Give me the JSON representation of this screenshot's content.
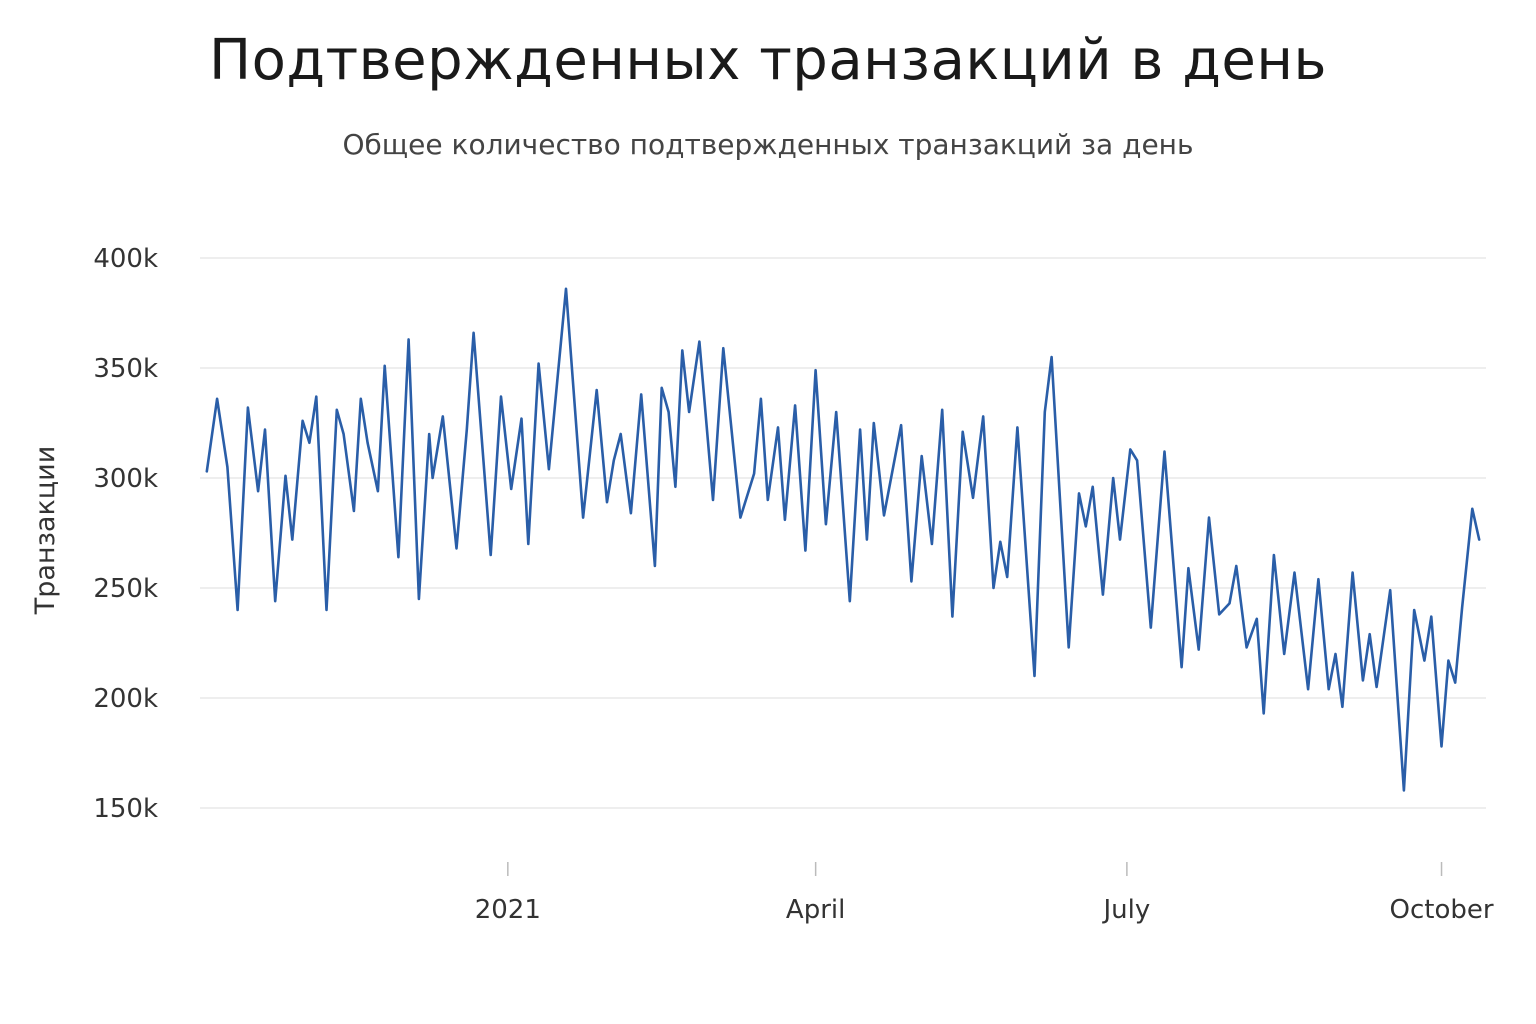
{
  "title": "Подтвержденных транзакций в день",
  "subtitle": "Общее количество подтвержденных транзакций за день",
  "chart_data": {
    "type": "line",
    "ylabel": "Транзакции",
    "xlabel": "",
    "ylim": [
      150000,
      400000
    ],
    "yticks": [
      150000,
      200000,
      250000,
      300000,
      350000,
      400000
    ],
    "ytick_labels": [
      "150k",
      "200k",
      "250k",
      "300k",
      "350k",
      "400k"
    ],
    "xticks": [
      {
        "date": "2021-01-01",
        "label": "2021"
      },
      {
        "date": "2021-04-01",
        "label": "April"
      },
      {
        "date": "2021-07-01",
        "label": "July"
      },
      {
        "date": "2021-10-01",
        "label": "October"
      }
    ],
    "xlim": [
      "2020-10-03",
      "2021-10-14"
    ],
    "grid": "horizontal",
    "line_color": "#2a5ea8",
    "series": [
      {
        "x_start": "2020-10-05",
        "points": [
          [
            "2020-10-05",
            303000
          ],
          [
            "2020-10-08",
            336000
          ],
          [
            "2020-10-11",
            305000
          ],
          [
            "2020-10-14",
            240000
          ],
          [
            "2020-10-17",
            332000
          ],
          [
            "2020-10-20",
            294000
          ],
          [
            "2020-10-22",
            322000
          ],
          [
            "2020-10-25",
            244000
          ],
          [
            "2020-10-28",
            301000
          ],
          [
            "2020-10-30",
            272000
          ],
          [
            "2020-11-02",
            326000
          ],
          [
            "2020-11-04",
            316000
          ],
          [
            "2020-11-06",
            337000
          ],
          [
            "2020-11-09",
            240000
          ],
          [
            "2020-11-12",
            331000
          ],
          [
            "2020-11-14",
            320000
          ],
          [
            "2020-11-17",
            285000
          ],
          [
            "2020-11-19",
            336000
          ],
          [
            "2020-11-21",
            316000
          ],
          [
            "2020-11-24",
            294000
          ],
          [
            "2020-11-26",
            351000
          ],
          [
            "2020-11-30",
            264000
          ],
          [
            "2020-12-03",
            363000
          ],
          [
            "2020-12-06",
            245000
          ],
          [
            "2020-12-09",
            320000
          ],
          [
            "2020-12-10",
            300000
          ],
          [
            "2020-12-13",
            328000
          ],
          [
            "2020-12-17",
            268000
          ],
          [
            "2020-12-20",
            322000
          ],
          [
            "2020-12-22",
            366000
          ],
          [
            "2020-12-27",
            265000
          ],
          [
            "2020-12-30",
            337000
          ],
          [
            "2021-01-02",
            295000
          ],
          [
            "2021-01-05",
            327000
          ],
          [
            "2021-01-07",
            270000
          ],
          [
            "2021-01-10",
            352000
          ],
          [
            "2021-01-13",
            304000
          ],
          [
            "2021-01-18",
            386000
          ],
          [
            "2021-01-23",
            282000
          ],
          [
            "2021-01-27",
            340000
          ],
          [
            "2021-01-30",
            289000
          ],
          [
            "2021-02-01",
            308000
          ],
          [
            "2021-02-03",
            320000
          ],
          [
            "2021-02-06",
            284000
          ],
          [
            "2021-02-09",
            338000
          ],
          [
            "2021-02-13",
            260000
          ],
          [
            "2021-02-15",
            341000
          ],
          [
            "2021-02-17",
            330000
          ],
          [
            "2021-02-19",
            296000
          ],
          [
            "2021-02-21",
            358000
          ],
          [
            "2021-02-23",
            330000
          ],
          [
            "2021-02-26",
            362000
          ],
          [
            "2021-03-02",
            290000
          ],
          [
            "2021-03-05",
            359000
          ],
          [
            "2021-03-10",
            282000
          ],
          [
            "2021-03-14",
            302000
          ],
          [
            "2021-03-16",
            336000
          ],
          [
            "2021-03-18",
            290000
          ],
          [
            "2021-03-21",
            323000
          ],
          [
            "2021-03-23",
            281000
          ],
          [
            "2021-03-26",
            333000
          ],
          [
            "2021-03-29",
            267000
          ],
          [
            "2021-04-01",
            349000
          ],
          [
            "2021-04-04",
            279000
          ],
          [
            "2021-04-07",
            330000
          ],
          [
            "2021-04-11",
            244000
          ],
          [
            "2021-04-14",
            322000
          ],
          [
            "2021-04-16",
            272000
          ],
          [
            "2021-04-18",
            325000
          ],
          [
            "2021-04-21",
            283000
          ],
          [
            "2021-04-26",
            324000
          ],
          [
            "2021-04-29",
            253000
          ],
          [
            "2021-05-02",
            310000
          ],
          [
            "2021-05-05",
            270000
          ],
          [
            "2021-05-08",
            331000
          ],
          [
            "2021-05-11",
            237000
          ],
          [
            "2021-05-14",
            321000
          ],
          [
            "2021-05-17",
            291000
          ],
          [
            "2021-05-20",
            328000
          ],
          [
            "2021-05-23",
            250000
          ],
          [
            "2021-05-25",
            271000
          ],
          [
            "2021-05-27",
            255000
          ],
          [
            "2021-05-30",
            323000
          ],
          [
            "2021-06-04",
            210000
          ],
          [
            "2021-06-07",
            330000
          ],
          [
            "2021-06-09",
            355000
          ],
          [
            "2021-06-14",
            223000
          ],
          [
            "2021-06-17",
            293000
          ],
          [
            "2021-06-19",
            278000
          ],
          [
            "2021-06-21",
            296000
          ],
          [
            "2021-06-24",
            247000
          ],
          [
            "2021-06-27",
            300000
          ],
          [
            "2021-06-29",
            272000
          ],
          [
            "2021-07-02",
            313000
          ],
          [
            "2021-07-04",
            308000
          ],
          [
            "2021-07-08",
            232000
          ],
          [
            "2021-07-12",
            312000
          ],
          [
            "2021-07-17",
            214000
          ],
          [
            "2021-07-19",
            259000
          ],
          [
            "2021-07-22",
            222000
          ],
          [
            "2021-07-25",
            282000
          ],
          [
            "2021-07-28",
            238000
          ],
          [
            "2021-07-31",
            243000
          ],
          [
            "2021-08-02",
            260000
          ],
          [
            "2021-08-05",
            223000
          ],
          [
            "2021-08-08",
            236000
          ],
          [
            "2021-08-10",
            193000
          ],
          [
            "2021-08-13",
            265000
          ],
          [
            "2021-08-16",
            220000
          ],
          [
            "2021-08-19",
            257000
          ],
          [
            "2021-08-23",
            204000
          ],
          [
            "2021-08-26",
            254000
          ],
          [
            "2021-08-29",
            204000
          ],
          [
            "2021-08-31",
            220000
          ],
          [
            "2021-09-02",
            196000
          ],
          [
            "2021-09-05",
            257000
          ],
          [
            "2021-09-08",
            208000
          ],
          [
            "2021-09-10",
            229000
          ],
          [
            "2021-09-12",
            205000
          ],
          [
            "2021-09-16",
            249000
          ],
          [
            "2021-09-20",
            158000
          ],
          [
            "2021-09-23",
            240000
          ],
          [
            "2021-09-26",
            217000
          ],
          [
            "2021-09-28",
            237000
          ],
          [
            "2021-10-01",
            178000
          ],
          [
            "2021-10-03",
            217000
          ],
          [
            "2021-10-05",
            207000
          ],
          [
            "2021-10-07",
            241000
          ],
          [
            "2021-10-10",
            286000
          ],
          [
            "2021-10-12",
            272000
          ]
        ]
      }
    ]
  }
}
